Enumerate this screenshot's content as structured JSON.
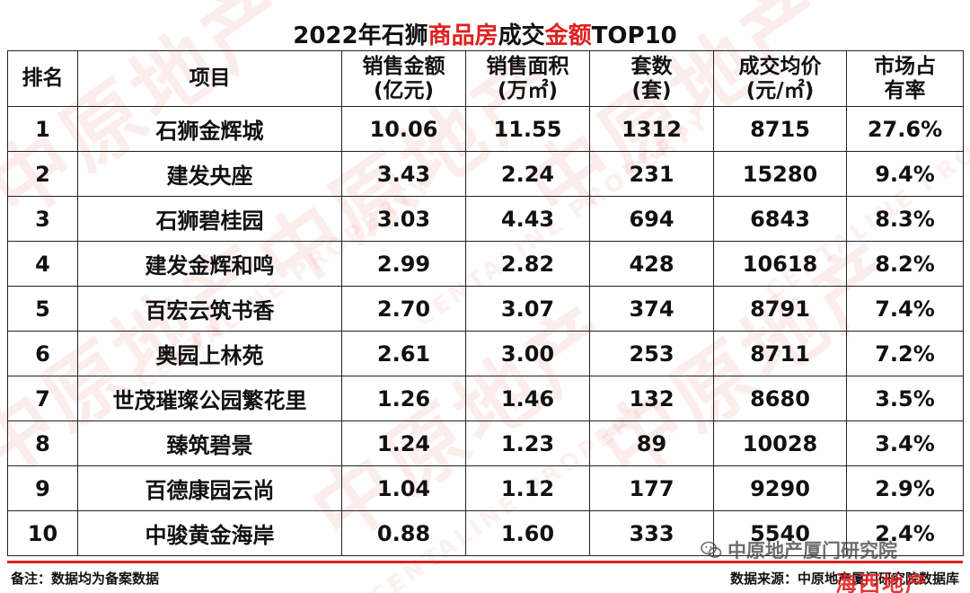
{
  "title": {
    "prefix": "2022年石狮",
    "highlight1": "商品房",
    "middle": "成交",
    "highlight2": "金额",
    "suffix": "TOP10"
  },
  "columns": [
    {
      "line1": "排名",
      "line2": ""
    },
    {
      "line1": "项目",
      "line2": ""
    },
    {
      "line1": "销售金额",
      "line2": "(亿元)"
    },
    {
      "line1": "销售面积",
      "line2": "(万㎡)"
    },
    {
      "line1": "套数",
      "line2": "(套)"
    },
    {
      "line1": "成交均价",
      "line2": "(元/㎡)"
    },
    {
      "line1": "市场占",
      "line2": "有率"
    }
  ],
  "rows": [
    {
      "rank": "1",
      "project": "石狮金辉城",
      "amount": "10.06",
      "area": "11.55",
      "units": "1312",
      "avg_price": "8715",
      "share": "27.6%"
    },
    {
      "rank": "2",
      "project": "建发央座",
      "amount": "3.43",
      "area": "2.24",
      "units": "231",
      "avg_price": "15280",
      "share": "9.4%"
    },
    {
      "rank": "3",
      "project": "石狮碧桂园",
      "amount": "3.03",
      "area": "4.43",
      "units": "694",
      "avg_price": "6843",
      "share": "8.3%"
    },
    {
      "rank": "4",
      "project": "建发金辉和鸣",
      "amount": "2.99",
      "area": "2.82",
      "units": "428",
      "avg_price": "10618",
      "share": "8.2%"
    },
    {
      "rank": "5",
      "project": "百宏云筑书香",
      "amount": "2.70",
      "area": "3.07",
      "units": "374",
      "avg_price": "8791",
      "share": "7.4%"
    },
    {
      "rank": "6",
      "project": "奥园上林苑",
      "amount": "2.61",
      "area": "3.00",
      "units": "253",
      "avg_price": "8711",
      "share": "7.2%"
    },
    {
      "rank": "7",
      "project": "世茂璀璨公园繁花里",
      "amount": "1.26",
      "area": "1.46",
      "units": "132",
      "avg_price": "8680",
      "share": "3.5%"
    },
    {
      "rank": "8",
      "project": "臻筑碧景",
      "amount": "1.24",
      "area": "1.23",
      "units": "89",
      "avg_price": "10028",
      "share": "3.4%"
    },
    {
      "rank": "9",
      "project": "百德康园云尚",
      "amount": "1.04",
      "area": "1.12",
      "units": "177",
      "avg_price": "9290",
      "share": "2.9%"
    },
    {
      "rank": "10",
      "project": "中骏黄金海岸",
      "amount": "0.88",
      "area": "1.60",
      "units": "333",
      "avg_price": "5540",
      "share": "2.4%"
    }
  ],
  "footer": {
    "note": "备注：数据均为备案数据",
    "source": "数据来源：中原地产厦门研究院数据库"
  },
  "wechat_badge": {
    "icon": "wechat-icon",
    "text": "中原地产厦门研究院"
  },
  "overlay_text": "海西地产",
  "watermark": {
    "main": "中原地产",
    "sub": "CENTALINE PROPERTY"
  },
  "colors": {
    "highlight": "#e02020",
    "border": "#222222",
    "watermark": "#dc3c3c"
  }
}
